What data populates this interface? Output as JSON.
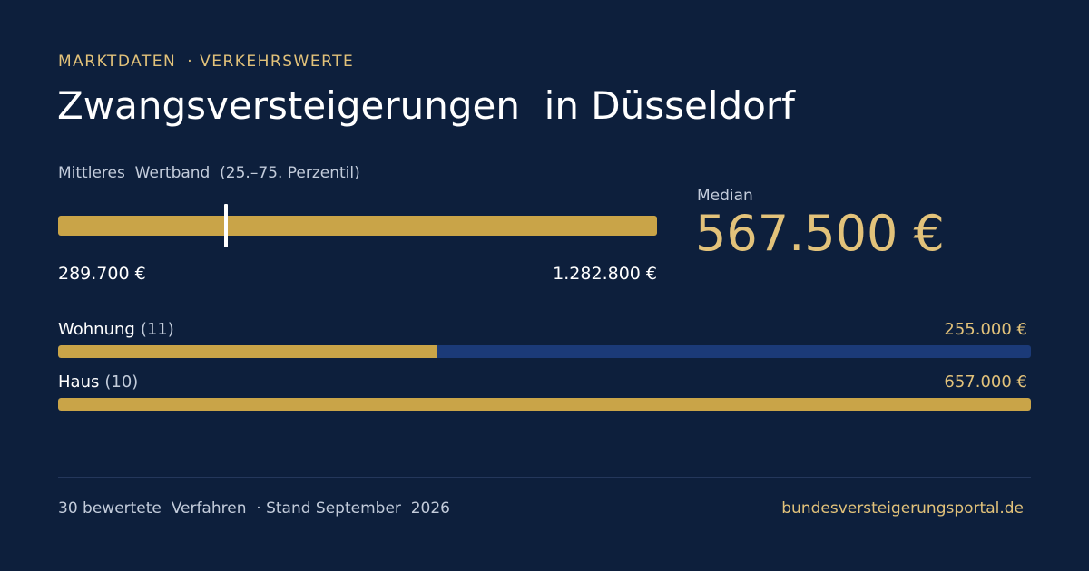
{
  "header": {
    "eyebrow_left": "MARKTDATEN",
    "eyebrow_right": "· VERKEHRSWERTE",
    "title": "Zwangsversteigerungen  in Düsseldorf"
  },
  "band": {
    "label": "Mittleres  Wertband  (25.–75. Perzentil)",
    "low": "289.700 €",
    "high": "1.282.800 €",
    "low_value": 289700,
    "high_value": 1282800,
    "median_value": 567500
  },
  "median": {
    "label": "Median",
    "value": "567.500 €"
  },
  "types": [
    {
      "name": "Wohnung",
      "count": "(11)",
      "value": "255.000 €",
      "amount": 255000,
      "share": 0.39
    },
    {
      "name": "Haus",
      "count": "(10)",
      "value": "657.000 €",
      "amount": 657000,
      "share": 1.0
    }
  ],
  "footer": {
    "left": "30 bewertete  Verfahren  · Stand September  2026",
    "right": "bundesversteigerungsportal.de"
  },
  "colors": {
    "background": "#0d1f3c",
    "gold": "#c9a448",
    "gold_text": "#e2c27a",
    "track_blue": "#1b3a78"
  }
}
